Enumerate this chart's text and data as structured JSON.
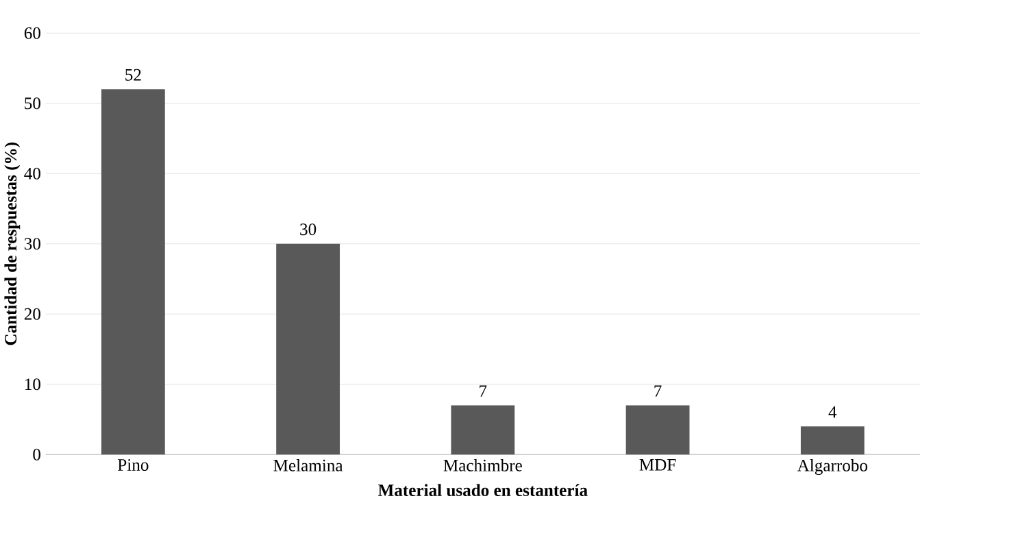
{
  "chart_data": {
    "type": "bar",
    "categories": [
      "Pino",
      "Melamina",
      "Machimbre",
      "MDF",
      "Algarrobo"
    ],
    "values": [
      52,
      30,
      7,
      7,
      4
    ],
    "color": "#595959",
    "xlabel": "Material usado en estantería",
    "ylabel": "Cantidad de respuestas (%)",
    "ylim": [
      0,
      60
    ],
    "yticks": [
      0,
      10,
      20,
      30,
      40,
      50,
      60
    ],
    "grid": "y",
    "data_labels": true
  }
}
